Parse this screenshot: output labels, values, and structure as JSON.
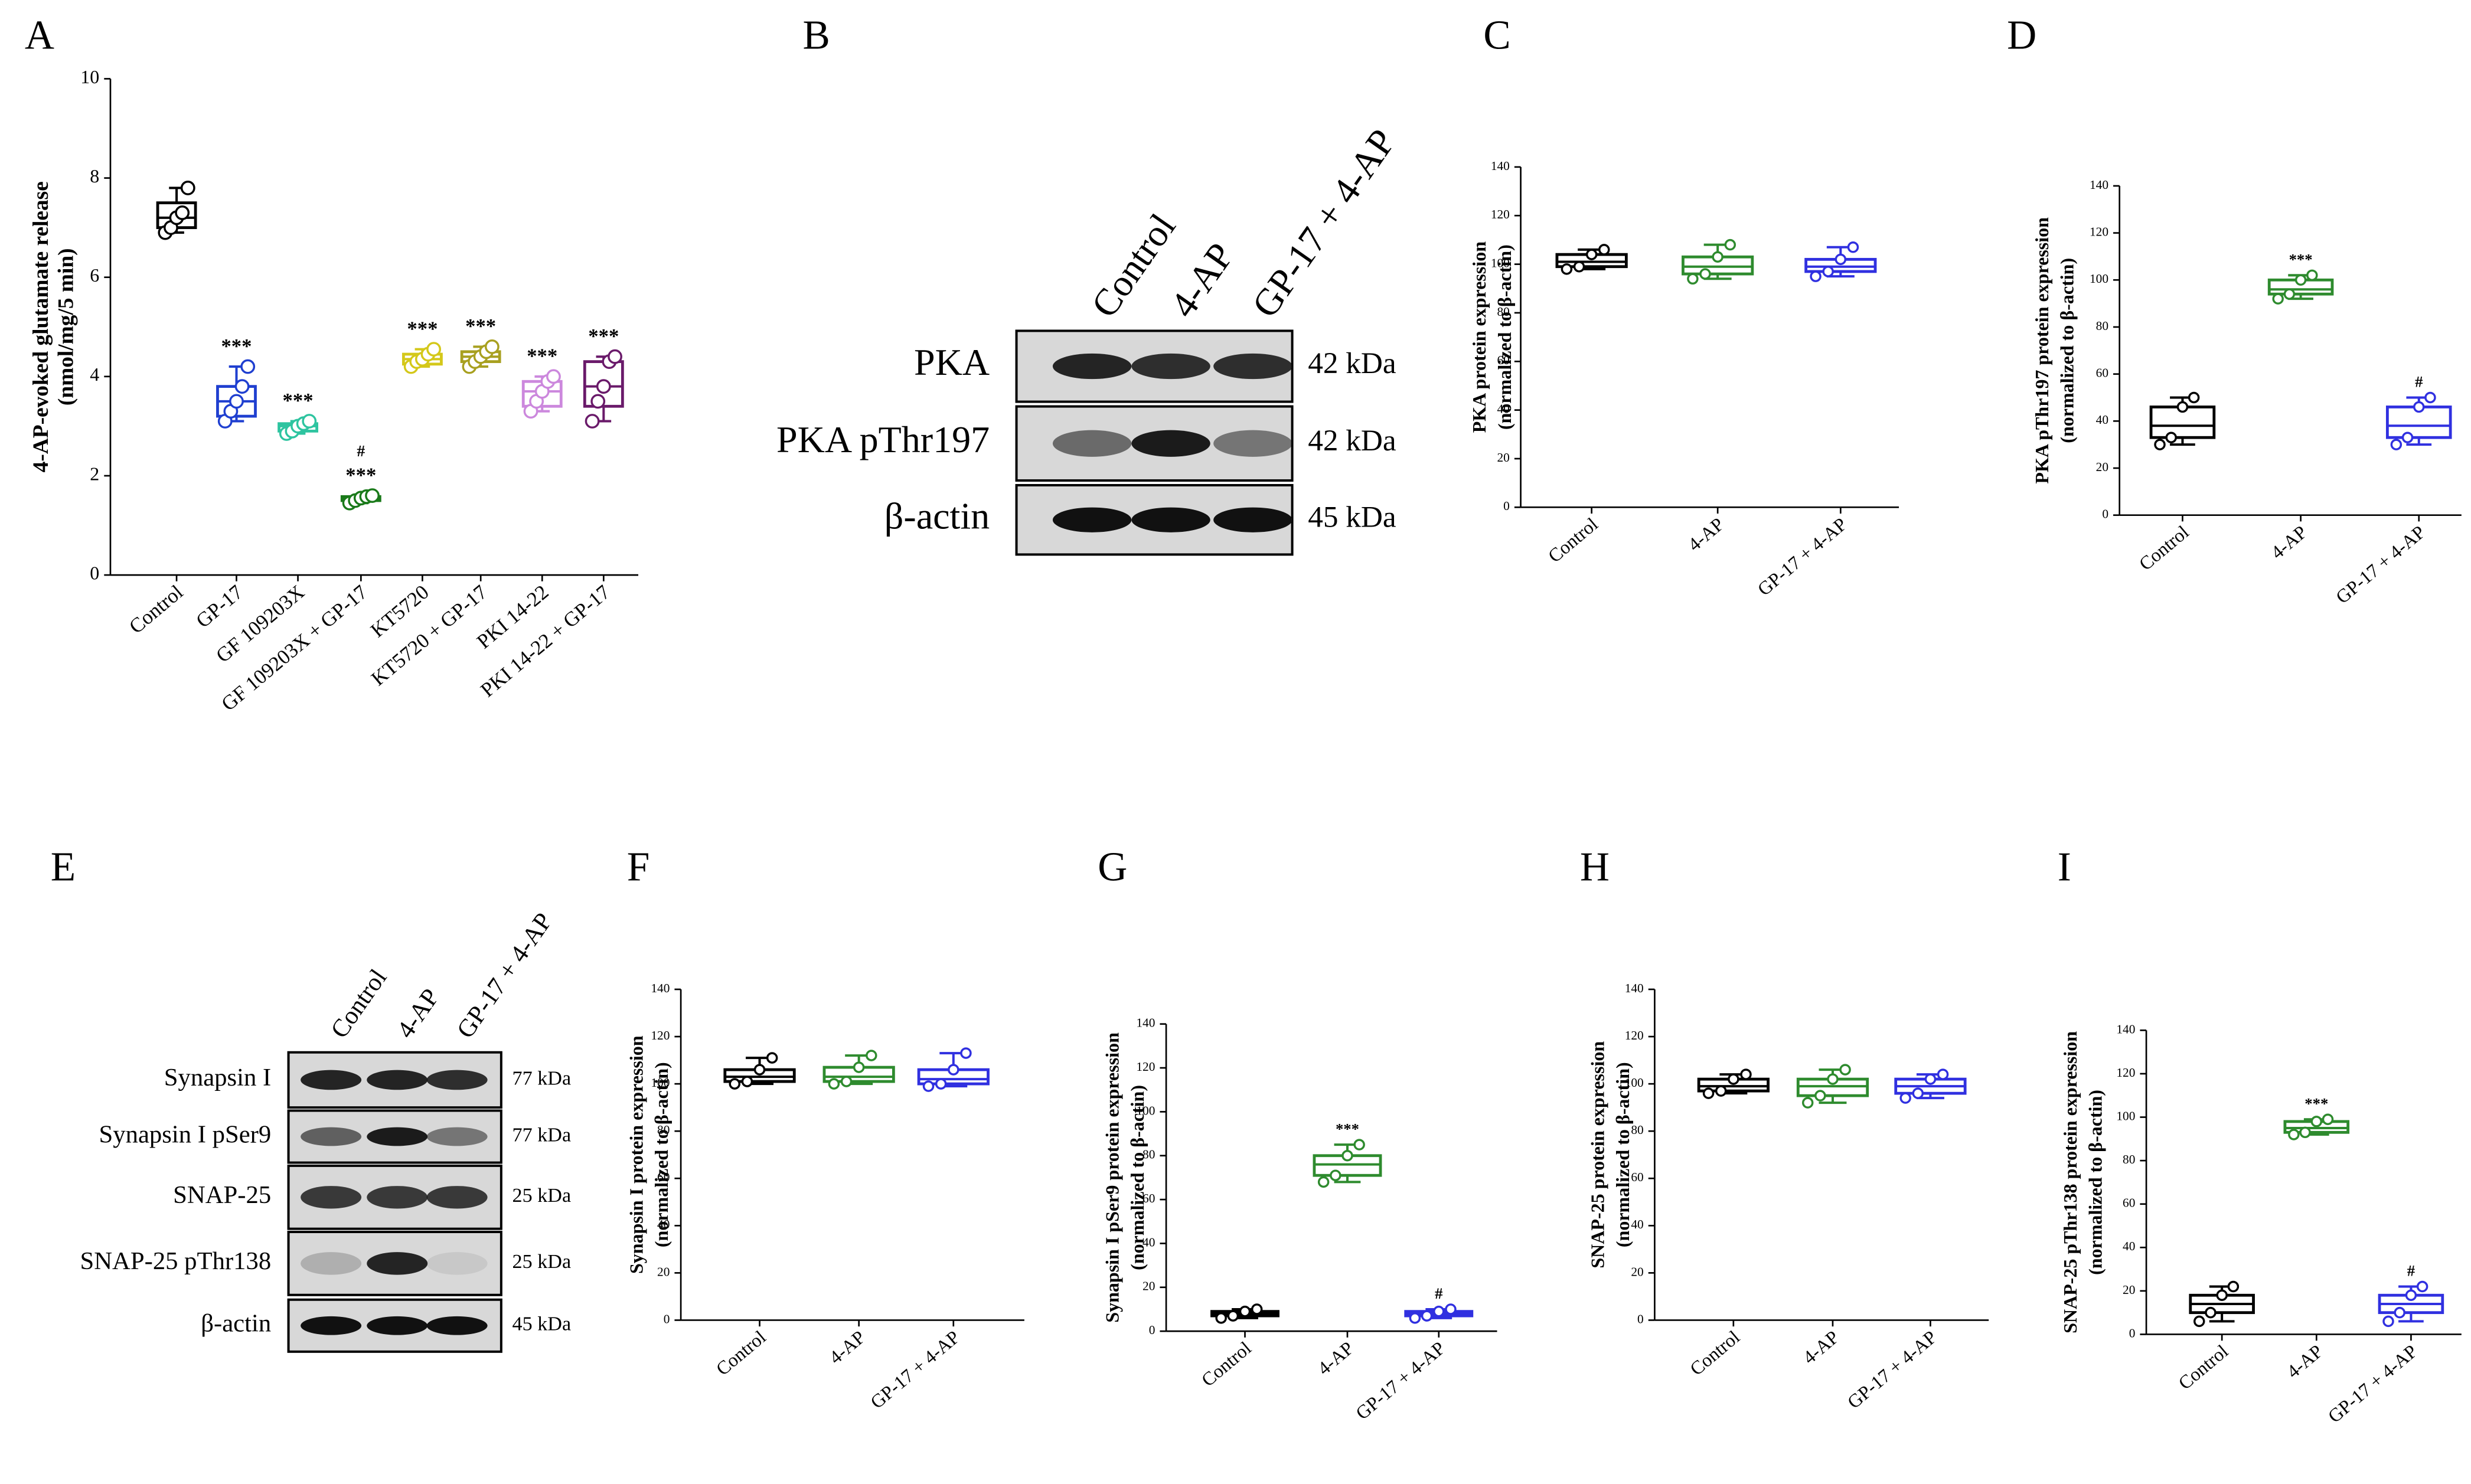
{
  "chart_data": [
    {
      "type": "box",
      "panel": "A",
      "ylabel": [
        "4-AP-evoked glutamate release",
        "(nmol/mg/5 min)"
      ],
      "categories": [
        "Control",
        "GP-17",
        "GF 109203X",
        "GF 109203X + GP-17",
        "KT5720",
        "KT5720 + GP-17",
        "PKI 14-22",
        "PKI 14-22 + GP-17"
      ],
      "ylim": [
        0,
        10
      ],
      "yticks": [
        0,
        2,
        4,
        6,
        8,
        10
      ],
      "boxes": [
        {
          "color": "#000000",
          "min": 6.9,
          "q1": 7.0,
          "median": 7.2,
          "q3": 7.5,
          "max": 7.8,
          "points": [
            6.9,
            7.0,
            7.2,
            7.3,
            7.8
          ]
        },
        {
          "color": "#1f3fd0",
          "min": 3.1,
          "q1": 3.2,
          "median": 3.5,
          "q3": 3.8,
          "max": 4.2,
          "points": [
            3.1,
            3.3,
            3.5,
            3.8,
            4.2
          ],
          "marks": [
            "***"
          ]
        },
        {
          "color": "#2ec4a0",
          "min": 2.85,
          "q1": 2.9,
          "median": 3.0,
          "q3": 3.05,
          "max": 3.1,
          "points": [
            2.85,
            2.9,
            3.0,
            3.05,
            3.1
          ],
          "marks": [
            "***"
          ]
        },
        {
          "color": "#1a7a1a",
          "min": 1.45,
          "q1": 1.5,
          "median": 1.55,
          "q3": 1.58,
          "max": 1.6,
          "points": [
            1.45,
            1.5,
            1.55,
            1.58,
            1.6
          ],
          "marks": [
            "***",
            "#"
          ]
        },
        {
          "color": "#d4c81a",
          "min": 4.2,
          "q1": 4.25,
          "median": 4.35,
          "q3": 4.45,
          "max": 4.55,
          "points": [
            4.2,
            4.3,
            4.35,
            4.45,
            4.55
          ],
          "marks": [
            "***"
          ]
        },
        {
          "color": "#a8a020",
          "min": 4.2,
          "q1": 4.3,
          "median": 4.4,
          "q3": 4.5,
          "max": 4.6,
          "points": [
            4.2,
            4.3,
            4.4,
            4.5,
            4.6
          ],
          "marks": [
            "***"
          ]
        },
        {
          "color": "#cc88dd",
          "min": 3.3,
          "q1": 3.4,
          "median": 3.7,
          "q3": 3.9,
          "max": 4.0,
          "points": [
            3.3,
            3.5,
            3.7,
            3.9,
            4.0
          ],
          "marks": [
            "***"
          ]
        },
        {
          "color": "#6a1a6a",
          "min": 3.1,
          "q1": 3.4,
          "median": 3.8,
          "q3": 4.3,
          "max": 4.4,
          "points": [
            3.1,
            3.5,
            3.8,
            4.3,
            4.4
          ],
          "marks": [
            "***"
          ]
        }
      ]
    },
    {
      "type": "box",
      "panel": "C",
      "ylabel": [
        "PKA protein expression",
        "(normalized to β-actin)"
      ],
      "categories": [
        "Control",
        "4-AP",
        "GP-17 + 4-AP"
      ],
      "ylim": [
        0,
        140
      ],
      "yticks": [
        0,
        20,
        40,
        60,
        80,
        100,
        120,
        140
      ],
      "boxes": [
        {
          "color": "#000000",
          "min": 98,
          "q1": 99,
          "median": 101,
          "q3": 104,
          "max": 106,
          "points": [
            98,
            99,
            104,
            106
          ]
        },
        {
          "color": "#2e8b2e",
          "min": 94,
          "q1": 96,
          "median": 99,
          "q3": 103,
          "max": 108,
          "points": [
            94,
            96,
            103,
            108
          ]
        },
        {
          "color": "#3030e0",
          "min": 95,
          "q1": 97,
          "median": 99,
          "q3": 102,
          "max": 107,
          "points": [
            95,
            97,
            102,
            107
          ]
        }
      ]
    },
    {
      "type": "box",
      "panel": "D",
      "ylabel": [
        "PKA pThr197 protein expression",
        "(normalized to β-actin)"
      ],
      "categories": [
        "Control",
        "4-AP",
        "GP-17 + 4-AP"
      ],
      "ylim": [
        0,
        140
      ],
      "yticks": [
        0,
        20,
        40,
        60,
        80,
        100,
        120,
        140
      ],
      "boxes": [
        {
          "color": "#000000",
          "min": 30,
          "q1": 33,
          "median": 38,
          "q3": 46,
          "max": 50,
          "points": [
            30,
            33,
            46,
            50
          ]
        },
        {
          "color": "#2e8b2e",
          "min": 92,
          "q1": 94,
          "median": 96,
          "q3": 100,
          "max": 102,
          "points": [
            92,
            94,
            100,
            102
          ],
          "marks": [
            "***"
          ]
        },
        {
          "color": "#3030e0",
          "min": 30,
          "q1": 33,
          "median": 38,
          "q3": 46,
          "max": 50,
          "points": [
            30,
            33,
            46,
            50
          ],
          "marks": [
            "#"
          ]
        }
      ]
    },
    {
      "type": "box",
      "panel": "F",
      "ylabel": [
        "Synapsin I protein expression",
        "(normalized to β-actin)"
      ],
      "categories": [
        "Control",
        "4-AP",
        "GP-17 + 4-AP"
      ],
      "ylim": [
        0,
        140
      ],
      "yticks": [
        0,
        20,
        40,
        60,
        80,
        100,
        120,
        140
      ],
      "boxes": [
        {
          "color": "#000000",
          "min": 100,
          "q1": 101,
          "median": 103,
          "q3": 106,
          "max": 111,
          "points": [
            100,
            101,
            106,
            111
          ]
        },
        {
          "color": "#2e8b2e",
          "min": 100,
          "q1": 101,
          "median": 103,
          "q3": 107,
          "max": 112,
          "points": [
            100,
            101,
            107,
            112
          ]
        },
        {
          "color": "#3030e0",
          "min": 99,
          "q1": 100,
          "median": 102,
          "q3": 106,
          "max": 113,
          "points": [
            99,
            100,
            106,
            113
          ]
        }
      ]
    },
    {
      "type": "box",
      "panel": "G",
      "ylabel": [
        "Synapsin I pSer9 protein expression",
        "(normalized to β-actin)"
      ],
      "categories": [
        "Control",
        "4-AP",
        "GP-17 + 4-AP"
      ],
      "ylim": [
        0,
        140
      ],
      "yticks": [
        0,
        20,
        40,
        60,
        80,
        100,
        120,
        140
      ],
      "boxes": [
        {
          "color": "#000000",
          "min": 6,
          "q1": 7,
          "median": 8,
          "q3": 9,
          "max": 10,
          "points": [
            6,
            7,
            9,
            10
          ]
        },
        {
          "color": "#2e8b2e",
          "min": 68,
          "q1": 71,
          "median": 76,
          "q3": 80,
          "max": 85,
          "points": [
            68,
            71,
            80,
            85
          ],
          "marks": [
            "***"
          ]
        },
        {
          "color": "#3030e0",
          "min": 6,
          "q1": 7,
          "median": 8,
          "q3": 9,
          "max": 10,
          "points": [
            6,
            7,
            9,
            10
          ],
          "marks": [
            "#"
          ]
        }
      ]
    },
    {
      "type": "box",
      "panel": "H",
      "ylabel": [
        "SNAP-25 protein expression",
        "(normalized to β-actin)"
      ],
      "categories": [
        "Control",
        "4-AP",
        "GP-17 + 4-AP"
      ],
      "ylim": [
        0,
        140
      ],
      "yticks": [
        0,
        20,
        40,
        60,
        80,
        100,
        120,
        140
      ],
      "boxes": [
        {
          "color": "#000000",
          "min": 96,
          "q1": 97,
          "median": 99,
          "q3": 102,
          "max": 104,
          "points": [
            96,
            97,
            102,
            104
          ]
        },
        {
          "color": "#2e8b2e",
          "min": 92,
          "q1": 95,
          "median": 99,
          "q3": 102,
          "max": 106,
          "points": [
            92,
            95,
            102,
            106
          ]
        },
        {
          "color": "#3030e0",
          "min": 94,
          "q1": 96,
          "median": 99,
          "q3": 102,
          "max": 104,
          "points": [
            94,
            96,
            102,
            104
          ]
        }
      ]
    },
    {
      "type": "box",
      "panel": "I",
      "ylabel": [
        "SNAP-25 pThr138 protein expression",
        "(normalized to β-actin)"
      ],
      "categories": [
        "Control",
        "4-AP",
        "GP-17 + 4-AP"
      ],
      "ylim": [
        0,
        140
      ],
      "yticks": [
        0,
        20,
        40,
        60,
        80,
        100,
        120,
        140
      ],
      "boxes": [
        {
          "color": "#000000",
          "min": 6,
          "q1": 10,
          "median": 14,
          "q3": 18,
          "max": 22,
          "points": [
            6,
            10,
            18,
            22
          ]
        },
        {
          "color": "#2e8b2e",
          "min": 92,
          "q1": 93,
          "median": 95,
          "q3": 98,
          "max": 99,
          "points": [
            92,
            93,
            98,
            99
          ],
          "marks": [
            "***"
          ]
        },
        {
          "color": "#3030e0",
          "min": 6,
          "q1": 10,
          "median": 14,
          "q3": 18,
          "max": 22,
          "points": [
            6,
            10,
            18,
            22
          ],
          "marks": [
            "#"
          ]
        }
      ]
    }
  ],
  "blots": [
    {
      "panel": "B",
      "lanes": [
        "Control",
        "4-AP",
        "GP-17 + 4-AP"
      ],
      "rows": [
        {
          "protein": "PKA",
          "size": "42 kDa"
        },
        {
          "protein": "PKA pThr197",
          "size": "42 kDa"
        },
        {
          "protein": "β-actin",
          "size": "45 kDa"
        }
      ]
    },
    {
      "panel": "E",
      "lanes": [
        "Control",
        "4-AP",
        "GP-17 + 4-AP"
      ],
      "rows": [
        {
          "protein": "Synapsin I",
          "size": "77 kDa"
        },
        {
          "protein": "Synapsin I pSer9",
          "size": "77 kDa"
        },
        {
          "protein": "SNAP-25",
          "size": "25 kDa"
        },
        {
          "protein": "SNAP-25 pThr138",
          "size": "25 kDa"
        },
        {
          "protein": "β-actin",
          "size": "45 kDa"
        }
      ]
    }
  ]
}
